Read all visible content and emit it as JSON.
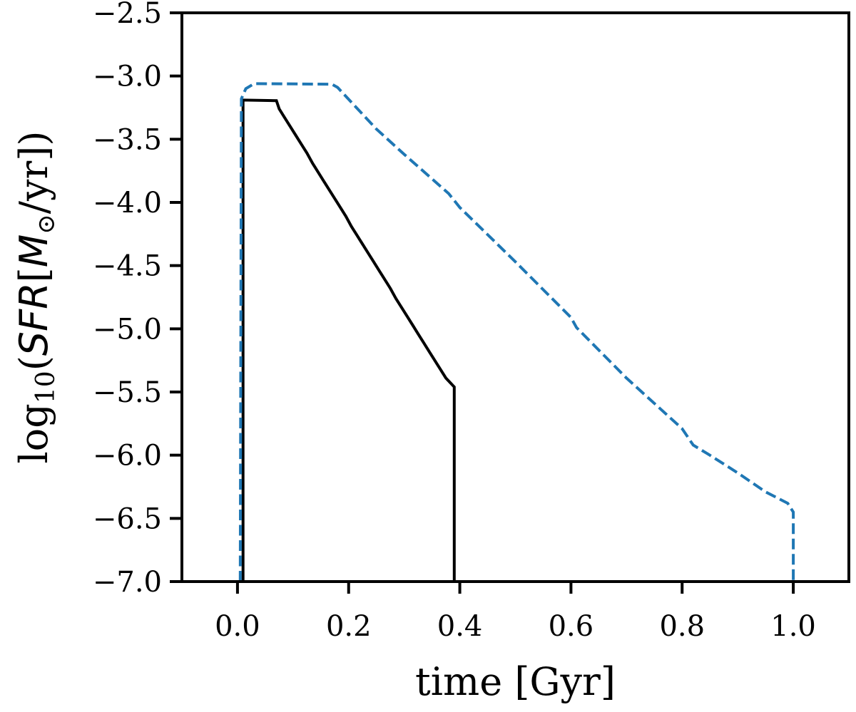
{
  "chart_data": {
    "type": "line",
    "title": "",
    "xlabel": "time [Gyr]",
    "ylabel": {
      "prefix": "log",
      "subscript": "10",
      "open": "(",
      "quantity": "SFR",
      "bracket_open": "[",
      "unit_mass": "M",
      "unit_sub": "⊙",
      "unit_rest": "/yr",
      "bracket_close": "]",
      "close": ")"
    },
    "xlim": [
      -0.1,
      1.1
    ],
    "ylim": [
      -7.0,
      -2.5
    ],
    "xticks": [
      0.0,
      0.2,
      0.4,
      0.6,
      0.8,
      1.0
    ],
    "xtick_labels": [
      "0.0",
      "0.2",
      "0.4",
      "0.6",
      "0.8",
      "1.0"
    ],
    "yticks": [
      -7.0,
      -6.5,
      -6.0,
      -5.5,
      -5.0,
      -4.5,
      -4.0,
      -3.5,
      -3.0,
      -2.5
    ],
    "ytick_labels": [
      "−7.0",
      "−6.5",
      "−6.0",
      "−5.5",
      "−5.0",
      "−4.5",
      "−4.0",
      "−3.5",
      "−3.0",
      "−2.5"
    ],
    "grid": false,
    "legend": "none",
    "series": [
      {
        "color": "#000000",
        "style": "solid-step",
        "x": [
          0.01,
          0.01,
          0.07,
          0.075,
          0.085,
          0.095,
          0.105,
          0.115,
          0.125,
          0.135,
          0.145,
          0.155,
          0.165,
          0.175,
          0.185,
          0.195,
          0.205,
          0.215,
          0.225,
          0.235,
          0.245,
          0.255,
          0.265,
          0.275,
          0.285,
          0.295,
          0.305,
          0.315,
          0.325,
          0.335,
          0.345,
          0.355,
          0.365,
          0.375,
          0.39,
          0.39
        ],
        "y": [
          -7.0,
          -3.19,
          -3.195,
          -3.26,
          -3.33,
          -3.4,
          -3.47,
          -3.54,
          -3.61,
          -3.69,
          -3.76,
          -3.83,
          -3.9,
          -3.97,
          -4.04,
          -4.11,
          -4.19,
          -4.26,
          -4.33,
          -4.4,
          -4.47,
          -4.54,
          -4.61,
          -4.68,
          -4.76,
          -4.83,
          -4.9,
          -4.97,
          -5.04,
          -5.11,
          -5.18,
          -5.25,
          -5.32,
          -5.39,
          -5.46,
          -7.0
        ]
      },
      {
        "color": "#1f77b4",
        "style": "dashed",
        "x": [
          0.005,
          0.007,
          0.015,
          0.03,
          0.17,
          0.18,
          0.25,
          0.3,
          0.38,
          0.4,
          0.5,
          0.6,
          0.61,
          0.7,
          0.8,
          0.82,
          0.85,
          0.9,
          0.95,
          0.99,
          1.0,
          1.0
        ],
        "y": [
          -7.0,
          -3.18,
          -3.1,
          -3.06,
          -3.065,
          -3.09,
          -3.42,
          -3.62,
          -3.93,
          -4.04,
          -4.47,
          -4.91,
          -4.99,
          -5.39,
          -5.79,
          -5.92,
          -6.0,
          -6.14,
          -6.29,
          -6.38,
          -6.45,
          -7.0
        ]
      }
    ]
  }
}
